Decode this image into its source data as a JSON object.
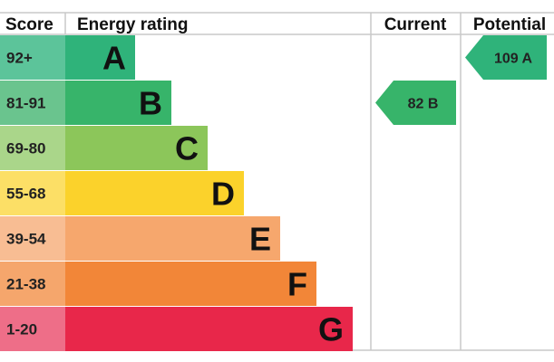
{
  "header": {
    "score": "Score",
    "energy_rating": "Energy rating",
    "current": "Current",
    "potential": "Potential"
  },
  "chart_data": {
    "type": "bar",
    "categories": [
      "92+",
      "81-91",
      "69-80",
      "55-68",
      "39-54",
      "21-38",
      "1-20"
    ],
    "bands": [
      {
        "score": "92+",
        "letter": "A",
        "color": "#2fb37a",
        "score_color": "#5cc49a"
      },
      {
        "score": "81-91",
        "letter": "B",
        "color": "#37b46a",
        "score_color": "#6ac48e"
      },
      {
        "score": "69-80",
        "letter": "C",
        "color": "#8cc65a",
        "score_color": "#aad68a"
      },
      {
        "score": "55-68",
        "letter": "D",
        "color": "#fbd22b",
        "score_color": "#fcdf66"
      },
      {
        "score": "39-54",
        "letter": "E",
        "color": "#f6a76d",
        "score_color": "#f8bd93"
      },
      {
        "score": "21-38",
        "letter": "F",
        "color": "#f28638",
        "score_color": "#f5a66c"
      },
      {
        "score": "1-20",
        "letter": "G",
        "color": "#e8274a",
        "score_color": "#ee6e88"
      }
    ],
    "current": {
      "value": 82,
      "band": "B",
      "label": "82  B",
      "color": "#37b46a"
    },
    "potential": {
      "value": 109,
      "band": "A",
      "label": "109  A",
      "color": "#2fb37a"
    }
  }
}
